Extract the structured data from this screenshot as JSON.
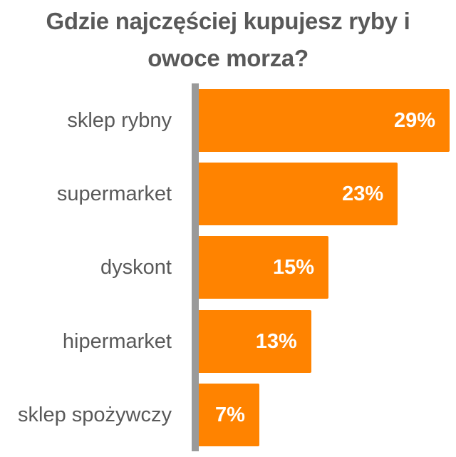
{
  "chart_data": {
    "type": "bar",
    "orientation": "horizontal",
    "title": "Gdzie najczęściej kupujesz ryby i owoce morza?",
    "categories": [
      "sklep rybny",
      "supermarket",
      "dyskont",
      "hipermarket",
      "sklep spożywczy"
    ],
    "values": [
      29,
      23,
      15,
      13,
      7
    ],
    "labels": [
      "29%",
      "23%",
      "15%",
      "13%",
      "7%"
    ],
    "xlabel": "",
    "ylabel": "",
    "unit": "%",
    "grid": false,
    "legend": null,
    "colors": {
      "bar": "#ff8300",
      "axis": "#9a9a9a",
      "text": "#595959",
      "value_text": "#ffffff"
    }
  },
  "title_lines": [
    "Gdzie najczęściej kupujesz ryby i",
    "owoce morza?"
  ]
}
